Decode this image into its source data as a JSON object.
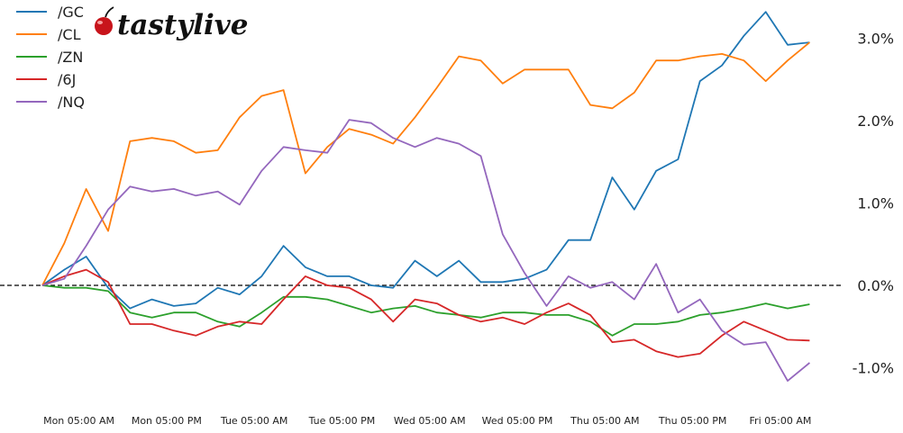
{
  "logo": {
    "text": "tastylive",
    "icon": "cherry-icon"
  },
  "chart_data": {
    "type": "line",
    "title": "",
    "xlabel": "",
    "ylabel": "",
    "ylim": [
      -1.45,
      3.4
    ],
    "y_unit": "%",
    "grid": false,
    "legend_position": "top-left",
    "zero_line": {
      "value": 0,
      "style": "dashed",
      "color": "#000000"
    },
    "x_tick_labels": [
      "Mon 05:00 AM",
      "Mon 05:00 PM",
      "Tue 05:00 AM",
      "Tue 05:00 PM",
      "Wed 05:00 AM",
      "Wed 05:00 PM",
      "Thu 05:00 AM",
      "Thu 05:00 PM",
      "Fri 05:00 AM"
    ],
    "y_ticks": [
      3.0,
      2.0,
      1.0,
      0.0,
      -1.0
    ],
    "y_tick_labels": [
      "3.0%",
      "2.0%",
      "1.0%",
      "0.0%",
      "-1.0%"
    ],
    "x": [
      "Mon 12:00 AM",
      "Mon 03:00 AM",
      "Mon 06:00 AM",
      "Mon 09:00 AM",
      "Mon 12:00 PM",
      "Mon 03:00 PM",
      "Mon 06:00 PM",
      "Mon 09:00 PM",
      "Tue 12:00 AM",
      "Tue 03:00 AM",
      "Tue 06:00 AM",
      "Tue 09:00 AM",
      "Tue 12:00 PM",
      "Tue 03:00 PM",
      "Tue 06:00 PM",
      "Tue 09:00 PM",
      "Wed 12:00 AM",
      "Wed 03:00 AM",
      "Wed 06:00 AM",
      "Wed 09:00 AM",
      "Wed 12:00 PM",
      "Wed 03:00 PM",
      "Wed 06:00 PM",
      "Wed 09:00 PM",
      "Thu 12:00 AM",
      "Thu 03:00 AM",
      "Thu 06:00 AM",
      "Thu 09:00 AM",
      "Thu 12:00 PM",
      "Thu 03:00 PM",
      "Thu 06:00 PM",
      "Thu 09:00 PM",
      "Fri 12:00 AM",
      "Fri 03:00 AM",
      "Fri 06:00 AM",
      "Fri 09:00 AM"
    ],
    "series": [
      {
        "name": "/GC",
        "color": "#1f77b4",
        "values": [
          0,
          0.19,
          0.35,
          -0.03,
          -0.28,
          -0.17,
          -0.25,
          -0.22,
          -0.03,
          -0.11,
          0.11,
          0.48,
          0.22,
          0.11,
          0.11,
          0,
          -0.03,
          0.3,
          0.11,
          0.3,
          0.04,
          0.04,
          0.08,
          0.19,
          0.55,
          0.55,
          1.31,
          0.92,
          1.39,
          1.53,
          2.48,
          2.67,
          3.03,
          3.32,
          2.92,
          2.95
        ]
      },
      {
        "name": "/CL",
        "color": "#ff7f0e",
        "values": [
          0,
          0.51,
          1.17,
          0.66,
          1.75,
          1.79,
          1.75,
          1.61,
          1.64,
          2.04,
          2.3,
          2.37,
          1.36,
          1.68,
          1.9,
          1.83,
          1.72,
          2.04,
          2.4,
          2.78,
          2.73,
          2.45,
          2.62,
          2.62,
          2.62,
          2.19,
          2.15,
          2.34,
          2.73,
          2.73,
          2.78,
          2.81,
          2.73,
          2.48,
          2.73,
          2.95
        ]
      },
      {
        "name": "/ZN",
        "color": "#2ca02c",
        "values": [
          0,
          -0.03,
          -0.03,
          -0.07,
          -0.33,
          -0.39,
          -0.33,
          -0.33,
          -0.44,
          -0.5,
          -0.33,
          -0.14,
          -0.14,
          -0.17,
          -0.25,
          -0.33,
          -0.28,
          -0.25,
          -0.33,
          -0.36,
          -0.39,
          -0.33,
          -0.33,
          -0.36,
          -0.36,
          -0.44,
          -0.61,
          -0.47,
          -0.47,
          -0.44,
          -0.36,
          -0.33,
          -0.28,
          -0.22,
          -0.28,
          -0.23
        ]
      },
      {
        "name": "/6J",
        "color": "#d62728",
        "values": [
          0,
          0.11,
          0.19,
          0.04,
          -0.47,
          -0.47,
          -0.55,
          -0.61,
          -0.5,
          -0.44,
          -0.47,
          -0.17,
          0.11,
          0,
          -0.03,
          -0.17,
          -0.44,
          -0.17,
          -0.22,
          -0.36,
          -0.44,
          -0.39,
          -0.47,
          -0.33,
          -0.22,
          -0.36,
          -0.69,
          -0.66,
          -0.8,
          -0.87,
          -0.83,
          -0.61,
          -0.44,
          -0.55,
          -0.66,
          -0.67
        ]
      },
      {
        "name": "/NQ",
        "color": "#9467bd",
        "values": [
          0,
          0.08,
          0.48,
          0.92,
          1.2,
          1.14,
          1.17,
          1.09,
          1.14,
          0.98,
          1.39,
          1.68,
          1.64,
          1.61,
          2.01,
          1.97,
          1.79,
          1.68,
          1.79,
          1.72,
          1.57,
          0.62,
          0.15,
          -0.25,
          0.11,
          -0.03,
          0.04,
          -0.17,
          0.26,
          -0.33,
          -0.17,
          -0.55,
          -0.72,
          -0.69,
          -1.16,
          -0.94
        ]
      }
    ]
  }
}
